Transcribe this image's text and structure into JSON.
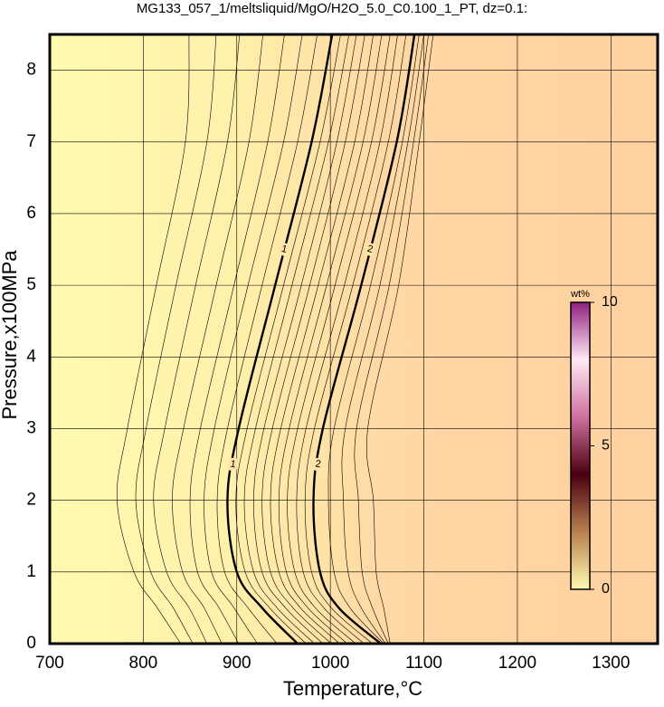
{
  "chart_data": {
    "type": "contour",
    "title": "MG133_057_1/meltsliquid/MgO/H2O_5.0_C0.100_1_PT, dz=0.1:",
    "x_label": "Temperature,°C",
    "y_label": "Pressure,x100MPa",
    "xlim": [
      700,
      1350
    ],
    "ylim": [
      0,
      8.5
    ],
    "xticks": [
      700,
      800,
      900,
      1000,
      1100,
      1200,
      1300
    ],
    "yticks": [
      0,
      1,
      2,
      3,
      4,
      5,
      6,
      7,
      8
    ],
    "grid": true,
    "pressures": [
      0,
      0.5,
      1,
      2,
      3,
      5,
      7,
      8.5
    ],
    "contours": [
      {
        "level": 0.3,
        "values": [
          840,
          815,
          790,
          772,
          783,
          814,
          845,
          849
        ]
      },
      {
        "level": 0.4,
        "values": [
          853,
          832,
          808,
          792,
          803,
          835,
          868,
          878
        ]
      },
      {
        "level": 0.5,
        "values": [
          868,
          849,
          825,
          811,
          823,
          856,
          890,
          903
        ]
      },
      {
        "level": 0.6,
        "values": [
          884,
          865,
          842,
          831,
          843,
          878,
          913,
          928
        ]
      },
      {
        "level": 0.7,
        "values": [
          902,
          881,
          858,
          850,
          861,
          897,
          933,
          951
        ]
      },
      {
        "level": 0.8,
        "values": [
          922,
          897,
          873,
          865,
          876,
          912,
          950,
          970
        ]
      },
      {
        "level": 0.9,
        "values": [
          943,
          912,
          887,
          879,
          890,
          927,
          965,
          986
        ]
      },
      {
        "level": 1,
        "values": [
          965,
          927,
          900,
          890,
          902,
          941,
          980,
          1002
        ]
      },
      {
        "level": 1.1,
        "values": [
          974,
          935,
          909,
          899,
          911,
          950,
          989,
          1011
        ]
      },
      {
        "level": 1.2,
        "values": [
          983,
          943,
          918,
          908,
          920,
          959,
          998,
          1020
        ]
      },
      {
        "level": 1.3,
        "values": [
          992,
          952,
          927,
          918,
          929,
          969,
          1007,
          1028
        ]
      },
      {
        "level": 1.4,
        "values": [
          1001,
          960,
          936,
          927,
          938,
          978,
          1016,
          1037
        ]
      },
      {
        "level": 1.5,
        "values": [
          1010,
          968,
          945,
          936,
          947,
          987,
          1026,
          1046
        ]
      },
      {
        "level": 1.6,
        "values": [
          1018,
          976,
          953,
          945,
          956,
          996,
          1035,
          1055
        ]
      },
      {
        "level": 1.7,
        "values": [
          1027,
          984,
          962,
          954,
          965,
          1005,
          1044,
          1064
        ]
      },
      {
        "level": 1.8,
        "values": [
          1036,
          993,
          971,
          964,
          974,
          1015,
          1053,
          1072
        ]
      },
      {
        "level": 1.9,
        "values": [
          1045,
          1001,
          980,
          973,
          983,
          1024,
          1062,
          1081
        ]
      },
      {
        "level": 2,
        "values": [
          1054,
          1009,
          989,
          982,
          992,
          1033,
          1071,
          1090
        ]
      },
      {
        "level": 2.1,
        "values": [
          1057,
          1021,
          1004,
          998,
          1004,
          1043,
          1077,
          1095
        ]
      },
      {
        "level": 2.2,
        "values": [
          1059,
          1033,
          1019,
          1014,
          1016,
          1053,
          1083,
          1100
        ]
      },
      {
        "level": 2.3,
        "values": [
          1062,
          1045,
          1034,
          1030,
          1028,
          1063,
          1089,
          1105
        ]
      },
      {
        "level": 2.4,
        "values": [
          1064,
          1057,
          1049,
          1046,
          1040,
          1073,
          1095,
          1110
        ]
      }
    ],
    "colorbar": {
      "label": "wt%",
      "lim": [
        0,
        10
      ],
      "ticks": [
        0,
        5,
        10
      ],
      "colors": [
        "#fffbb0",
        "#b88050",
        "#4a0010",
        "#d070a0",
        "#ffe8f4",
        "#902080"
      ]
    }
  }
}
